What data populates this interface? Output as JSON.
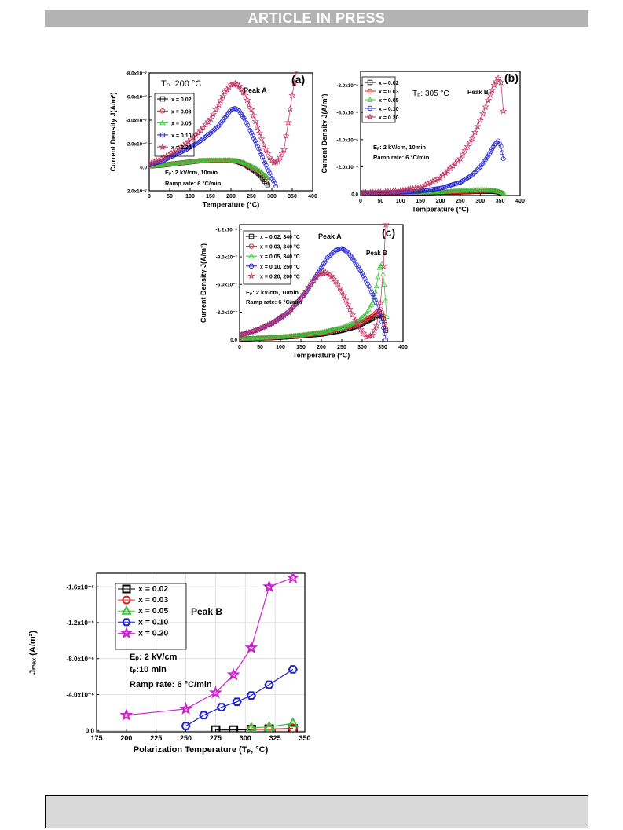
{
  "banner": "ARTICLE IN PRESS",
  "chart_data": [
    {
      "id": "a",
      "type": "scatter",
      "panel_label": "(a)",
      "xlabel": "Temperature (°C)",
      "ylabel": "Current Density J(A/m²)",
      "xlim": [
        0,
        400
      ],
      "ylim": [
        2e-07,
        -8e-07
      ],
      "x_ticks": [
        0,
        50,
        100,
        150,
        200,
        250,
        300,
        350,
        400
      ],
      "y_ticks": [
        2e-07,
        0.0,
        -2e-07,
        -4e-07,
        -6e-07,
        -8e-07
      ],
      "y_tick_labels": [
        "2.0x10⁻⁷",
        "0.0",
        "-2.0x10⁻⁷",
        "-4.0x10⁻⁷",
        "-6.0x10⁻⁷",
        "-8.0x10⁻⁷"
      ],
      "annotations": [
        "Tₚ: 200 °C",
        "Peak A",
        "Eₚ: 2 kV/cm, 10min",
        "Ramp rate: 6 °C/min"
      ],
      "legend_position": "top-left",
      "series": [
        {
          "name": "x = 0.02",
          "color": "#000000",
          "marker": "square",
          "x": [
            0,
            25,
            50,
            75,
            100,
            125,
            150,
            175,
            200,
            215,
            230,
            250,
            270,
            290
          ],
          "y": [
            -1e-08,
            -1.5e-08,
            -2.5e-08,
            -3.5e-08,
            -4.5e-08,
            -5.5e-08,
            -5.5e-08,
            -5.5e-08,
            -5.5e-08,
            -5e-08,
            -3e-08,
            1e-08,
            6e-08,
            1.5e-07
          ]
        },
        {
          "name": "x = 0.03",
          "color": "#e02020",
          "marker": "circle",
          "x": [
            0,
            25,
            50,
            75,
            100,
            125,
            150,
            175,
            200,
            215,
            230,
            250,
            270,
            290
          ],
          "y": [
            -1e-08,
            -1.5e-08,
            -2.5e-08,
            -3.5e-08,
            -4.5e-08,
            -5.5e-08,
            -5.5e-08,
            -5.5e-08,
            -5.5e-08,
            -5e-08,
            -3.5e-08,
            0,
            4e-08,
            1e-07
          ]
        },
        {
          "name": "x = 0.05",
          "color": "#40c040",
          "marker": "triangle",
          "x": [
            0,
            25,
            50,
            75,
            100,
            125,
            150,
            175,
            200,
            215,
            230,
            250,
            270,
            290
          ],
          "y": [
            -1e-08,
            -1.5e-08,
            -2.5e-08,
            -3.5e-08,
            -4.5e-08,
            -5.5e-08,
            -6e-08,
            -6e-08,
            -6e-08,
            -5.5e-08,
            -4e-08,
            -1e-08,
            3e-08,
            9e-08
          ]
        },
        {
          "name": "x = 0.10",
          "color": "#2020d0",
          "marker": "circle",
          "x": [
            0,
            30,
            60,
            90,
            120,
            150,
            170,
            185,
            200,
            210,
            220,
            235,
            250,
            265,
            280,
            295,
            310
          ],
          "y": [
            -2e-08,
            -5e-08,
            -1e-07,
            -1.5e-07,
            -2.1e-07,
            -2.9e-07,
            -3.5e-07,
            -4.2e-07,
            -4.9e-07,
            -5e-07,
            -4.8e-07,
            -4e-07,
            -2.9e-07,
            -1.8e-07,
            -6e-08,
            5e-08,
            1.6e-07
          ]
        },
        {
          "name": "x = 0.20",
          "color": "#c03060",
          "marker": "star",
          "x": [
            0,
            30,
            60,
            90,
            120,
            150,
            170,
            185,
            200,
            210,
            220,
            235,
            250,
            265,
            280,
            295,
            305,
            315,
            330,
            340,
            350,
            360
          ],
          "y": [
            -3e-08,
            -7e-08,
            -1.3e-07,
            -2e-07,
            -2.9e-07,
            -4.1e-07,
            -5.3e-07,
            -6.4e-07,
            -7e-07,
            -7.1e-07,
            -6.9e-07,
            -6.1e-07,
            -4.9e-07,
            -3.4e-07,
            -1.9e-07,
            -8e-08,
            -4e-08,
            -5e-08,
            -1.5e-07,
            -3.8e-07,
            -6.1e-07,
            -8.2e-07
          ]
        }
      ]
    },
    {
      "id": "b",
      "type": "scatter",
      "panel_label": "(b)",
      "xlabel": "Temperature (°C)",
      "ylabel": "Current Density J(A/m²)",
      "xlim": [
        0,
        400
      ],
      "ylim": [
        1e-07,
        -9e-06
      ],
      "x_ticks": [
        0,
        50,
        100,
        150,
        200,
        250,
        300,
        350,
        400
      ],
      "y_ticks": [
        0.0,
        -2e-06,
        -4e-06,
        -6e-06,
        -8e-06
      ],
      "y_tick_labels": [
        "0.0",
        "-2.0x10⁻⁶",
        "-4.0x10⁻⁶",
        "-6.0x10⁻⁶",
        "-8.0x10⁻⁶"
      ],
      "annotations": [
        "Tₚ: 305 °C",
        "Peak B",
        "Eₚ: 2 kV/cm, 10min",
        "Ramp rate: 6 °C/min"
      ],
      "legend_position": "top-left",
      "series": [
        {
          "name": "x = 0.02",
          "color": "#000000",
          "marker": "square",
          "x": [
            0,
            50,
            100,
            150,
            200,
            250,
            300,
            330,
            345,
            355
          ],
          "y": [
            -1e-07,
            -1e-07,
            -1e-07,
            -1.1e-07,
            -1.3e-07,
            -1.5e-07,
            -2e-07,
            -2e-07,
            -1.6e-07,
            -5e-08
          ]
        },
        {
          "name": "x = 0.03",
          "color": "#e02020",
          "marker": "circle",
          "x": [
            0,
            50,
            100,
            150,
            200,
            250,
            300,
            330,
            345,
            355
          ],
          "y": [
            -1e-07,
            -1e-07,
            -1e-07,
            -1.2e-07,
            -1.5e-07,
            -1.8e-07,
            -2.2e-07,
            -2.4e-07,
            -2e-07,
            -8e-08
          ]
        },
        {
          "name": "x = 0.05",
          "color": "#40c040",
          "marker": "triangle",
          "x": [
            0,
            50,
            100,
            150,
            200,
            250,
            280,
            300,
            320,
            335,
            350,
            360
          ],
          "y": [
            -1e-07,
            -1e-07,
            -1e-07,
            -1.2e-07,
            -1.6e-07,
            -2.5e-07,
            -3e-07,
            -3.2e-07,
            -3e-07,
            -2.6e-07,
            -1.6e-07,
            -5e-08
          ]
        },
        {
          "name": "x = 0.10",
          "color": "#2020d0",
          "marker": "circle",
          "x": [
            0,
            50,
            100,
            150,
            200,
            250,
            280,
            300,
            320,
            335,
            345,
            352,
            358
          ],
          "y": [
            -1e-07,
            -1e-07,
            -1.4e-07,
            -2.2e-07,
            -4.3e-07,
            -8.6e-07,
            -1.4e-06,
            -2e-06,
            -2.8e-06,
            -3.6e-06,
            -3.9e-06,
            -3.5e-06,
            -2.6e-06
          ]
        },
        {
          "name": "x = 0.20",
          "color": "#c03060",
          "marker": "star",
          "x": [
            0,
            50,
            100,
            150,
            200,
            250,
            280,
            300,
            320,
            335,
            345,
            352,
            358
          ],
          "y": [
            -1e-07,
            -1.5e-07,
            -2.5e-07,
            -5e-07,
            -1.2e-06,
            -2.6e-06,
            -4.1e-06,
            -5.4e-06,
            -6.9e-06,
            -8e-06,
            -8.5e-06,
            -8.2e-06,
            -6.1e-06
          ]
        }
      ]
    },
    {
      "id": "c",
      "type": "scatter",
      "panel_label": "(c)",
      "xlabel": "Temperature (°C)",
      "ylabel": "Current Density J(A/m²)",
      "xlim": [
        0,
        400
      ],
      "ylim": [
        2e-08,
        -1.25e-06
      ],
      "x_ticks": [
        0,
        50,
        100,
        150,
        200,
        250,
        300,
        350,
        400
      ],
      "y_ticks": [
        0.0,
        -3e-07,
        -6e-07,
        -9e-07,
        -1.2e-06
      ],
      "y_tick_labels": [
        "0.0",
        "-3.0x10⁻⁷",
        "-6.0x10⁻⁷",
        "-9.0x10⁻⁷",
        "-1.2x10⁻⁶"
      ],
      "annotations": [
        "Peak A",
        "Peak B",
        "Eₚ: 2 kV/cm, 10min",
        "Ramp rate: 6 °C/min"
      ],
      "legend_position": "top-left",
      "series": [
        {
          "name": "x = 0.02, 340 °C",
          "color": "#000000",
          "marker": "square",
          "x": [
            0,
            50,
            100,
            150,
            200,
            250,
            290,
            310,
            325,
            335,
            345,
            352,
            358
          ],
          "y": [
            -1e-08,
            -1.5e-08,
            -2.5e-08,
            -4e-08,
            -6e-08,
            -1e-07,
            -1.5e-07,
            -2e-07,
            -2.3e-07,
            -2.6e-07,
            -2.7e-07,
            -2.3e-07,
            -1e-07
          ]
        },
        {
          "name": "x = 0.03, 340 °C",
          "color": "#e02020",
          "marker": "circle",
          "x": [
            0,
            50,
            100,
            150,
            200,
            250,
            290,
            310,
            325,
            335,
            345,
            352,
            358
          ],
          "y": [
            -1e-08,
            -1.5e-08,
            -3e-08,
            -4.5e-08,
            -7e-08,
            -1.2e-07,
            -1.7e-07,
            -2.2e-07,
            -2.6e-07,
            -3e-07,
            -3.3e-07,
            -2.6e-07,
            -1.2e-07
          ]
        },
        {
          "name": "x = 0.05, 340 °C",
          "color": "#40c040",
          "marker": "triangle",
          "x": [
            0,
            50,
            100,
            150,
            200,
            250,
            290,
            310,
            325,
            335,
            342,
            348,
            354,
            360
          ],
          "y": [
            -1e-08,
            -2e-08,
            -3e-08,
            -5e-08,
            -8e-08,
            -1.3e-07,
            -2e-07,
            -2.8e-07,
            -4e-07,
            -5.8e-07,
            -7.8e-07,
            -8.2e-07,
            -6e-07,
            -2.5e-07
          ]
        },
        {
          "name": "x = 0.10, 250 °C",
          "color": "#2020d0",
          "marker": "circle",
          "x": [
            0,
            40,
            80,
            120,
            160,
            190,
            215,
            235,
            250,
            265,
            280,
            300,
            320,
            335,
            345,
            352,
            358
          ],
          "y": [
            -5e-08,
            -1e-07,
            -1.8e-07,
            -3e-07,
            -5e-07,
            -7.1e-07,
            -8.9e-07,
            -9.7e-07,
            -9.9e-07,
            -9.5e-07,
            -8.6e-07,
            -7.2e-07,
            -5.5e-07,
            -4e-07,
            -2.6e-07,
            -1.3e-07,
            0
          ]
        },
        {
          "name": "x = 0.20, 200 °C",
          "color": "#c03060",
          "marker": "star",
          "x": [
            0,
            40,
            80,
            120,
            150,
            175,
            195,
            210,
            225,
            240,
            255,
            270,
            290,
            310,
            325,
            335,
            345,
            352,
            358
          ],
          "y": [
            -5e-08,
            -1e-07,
            -1.8e-07,
            -3e-07,
            -4.5e-07,
            -6.1e-07,
            -7.1e-07,
            -7.3e-07,
            -6.9e-07,
            -6e-07,
            -4.8e-07,
            -3.3e-07,
            -1.5e-07,
            -3e-08,
            -5e-08,
            -1.5e-07,
            -4e-07,
            -8e-07,
            -1.25e-06
          ]
        }
      ]
    },
    {
      "id": "d",
      "type": "line",
      "xlabel": "Polarization Temperature (Tₚ, °C)",
      "ylabel": "Jₘₐₓ (A/m²)",
      "xlim": [
        175,
        350
      ],
      "ylim": [
        1.5e-07,
        -1.75e-05
      ],
      "x_ticks": [
        175,
        200,
        225,
        250,
        275,
        300,
        325,
        350
      ],
      "y_ticks": [
        0.0,
        -4e-06,
        -8e-06,
        -1.2e-05,
        -1.6e-05
      ],
      "y_tick_labels": [
        "0.0",
        "-4.0x10⁻⁶",
        "-8.0x10⁻⁶",
        "-1.2x10⁻⁵",
        "-1.6x10⁻⁵"
      ],
      "grid": true,
      "annotations": [
        "Peak B",
        "Eₚ: 2 kV/cm",
        "tₚ:10 min",
        "Ramp rate: 6 °C/min"
      ],
      "legend_position": "top-left",
      "series": [
        {
          "name": "x = 0.02",
          "color": "#000000",
          "marker": "square",
          "x": [
            275,
            290,
            305,
            320,
            340
          ],
          "y": [
            -5e-08,
            -5e-08,
            -1e-07,
            -1.5e-07,
            -2e-07
          ]
        },
        {
          "name": "x = 0.03",
          "color": "#e02020",
          "marker": "circle",
          "x": [
            305,
            320,
            340
          ],
          "y": [
            -1e-07,
            -1.5e-07,
            -2.5e-07
          ]
        },
        {
          "name": "x = 0.05",
          "color": "#40c040",
          "marker": "triangle",
          "x": [
            305,
            320,
            340
          ],
          "y": [
            -3e-07,
            -4e-07,
            -8e-07
          ]
        },
        {
          "name": "x = 0.10",
          "color": "#2020d0",
          "marker": "hexagon",
          "x": [
            250,
            265,
            280,
            293,
            305,
            320,
            340
          ],
          "y": [
            -5e-07,
            -1.7e-06,
            -2.6e-06,
            -3.2e-06,
            -3.9e-06,
            -5.1e-06,
            -6.8e-06
          ]
        },
        {
          "name": "x = 0.20",
          "color": "#cc22cc",
          "marker": "star",
          "x": [
            200,
            250,
            275,
            290,
            305,
            320,
            340
          ],
          "y": [
            -1.7e-06,
            -2.4e-06,
            -4.2e-06,
            -6.2e-06,
            -9.2e-06,
            -1.6e-05,
            -1.7e-05
          ]
        }
      ]
    }
  ]
}
